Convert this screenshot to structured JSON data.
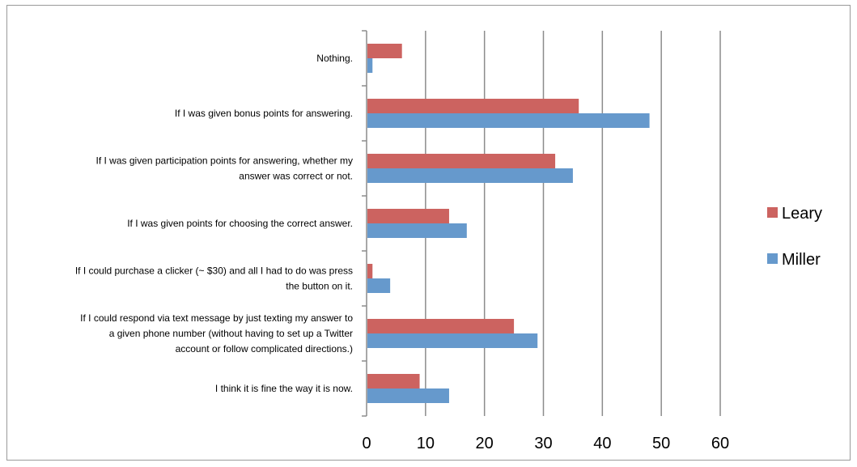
{
  "chart_data": {
    "type": "bar",
    "orientation": "horizontal",
    "categories": [
      "Nothing.",
      "If I was given bonus points for answering.",
      "If I was given participation points for answering, whether my answer was correct or not.",
      "If I was given points for choosing the correct answer.",
      "If I could purchase a clicker (~ $30) and all I had to do was press the button on it.",
      "If I could respond via text message by just texting my answer to a given phone number (without having to set up a Twitter account or follow complicated directions.)",
      "I think it is fine the way it is now."
    ],
    "category_lines": [
      [
        "Nothing."
      ],
      [
        "If I was given bonus points for answering."
      ],
      [
        "If I was given participation points for answering, whether my",
        "answer was correct or not."
      ],
      [
        "If I was given points for choosing the correct answer."
      ],
      [
        "If I could purchase a clicker (~ $30) and all I had to do was press",
        "the button on it."
      ],
      [
        "If I could respond via text message by just texting my answer to",
        "a given phone number (without having to set up a Twitter",
        "account or follow complicated directions.)"
      ],
      [
        "I think it is fine the way it is now."
      ]
    ],
    "series": [
      {
        "name": "Leary",
        "color": "#cc6360",
        "values": [
          6,
          36,
          32,
          14,
          1,
          25,
          9
        ]
      },
      {
        "name": "Miller",
        "color": "#6699cc",
        "values": [
          1,
          48,
          35,
          17,
          4,
          29,
          14
        ]
      }
    ],
    "x_ticks": [
      "0",
      "10",
      "20",
      "30",
      "40",
      "50",
      "60"
    ],
    "xlim": [
      0,
      60
    ],
    "grid": true,
    "legend_position": "right",
    "title": "",
    "xlabel": "",
    "ylabel": ""
  }
}
